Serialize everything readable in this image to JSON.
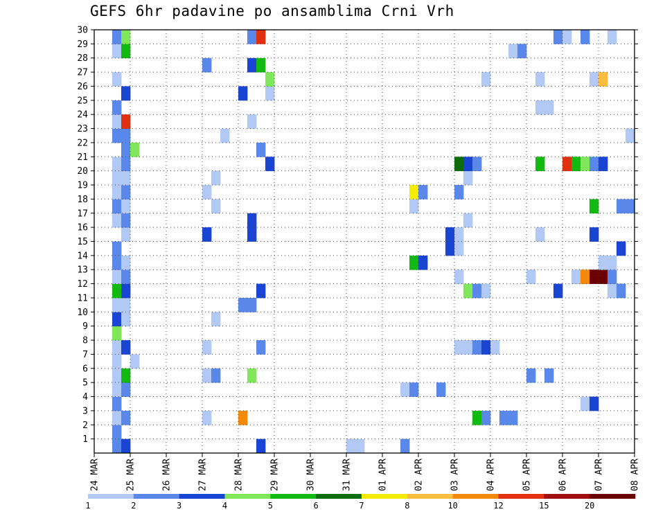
{
  "chart_data": {
    "type": "heatmap",
    "title": "GEFS 6hr padavine po ansamblima Crni Vrh",
    "xlabel": "",
    "ylabel": "",
    "x_tick_labels": [
      "24 MAR",
      "25 MAR",
      "26 MAR",
      "27 MAR",
      "28 MAR",
      "29 MAR",
      "30 MAR",
      "31 MAR",
      "01 APR",
      "02 APR",
      "03 APR",
      "04 APR",
      "05 APR",
      "06 APR",
      "07 APR",
      "08 APR"
    ],
    "y_tick_labels": [
      "1",
      "2",
      "3",
      "4",
      "5",
      "6",
      "7",
      "8",
      "9",
      "10",
      "11",
      "12",
      "13",
      "14",
      "15",
      "16",
      "17",
      "18",
      "19",
      "20",
      "21",
      "22",
      "23",
      "24",
      "25",
      "26",
      "27",
      "28",
      "29",
      "30"
    ],
    "ylim": [
      0,
      30
    ],
    "x_steps_per_day": 4,
    "x_steps_total": 60,
    "grid": true,
    "legend_position": "bottom",
    "legend_levels": [
      "1",
      "2",
      "3",
      "4",
      "5",
      "6",
      "7",
      "8",
      "10",
      "12",
      "15",
      "20"
    ],
    "legend_colors": [
      "#b3c9f5",
      "#5a88ea",
      "#1a45d2",
      "#80e65a",
      "#11b911",
      "#0b6d0b",
      "#f5ed00",
      "#fdbe40",
      "#f58a0a",
      "#e03010",
      "#a01010",
      "#6a0000"
    ],
    "cells": [
      [
        2,
        0,
        2
      ],
      [
        3,
        0,
        3
      ],
      [
        18,
        0,
        3
      ],
      [
        28,
        0,
        1
      ],
      [
        29,
        0,
        1
      ],
      [
        34,
        0,
        2
      ],
      [
        2,
        1,
        2
      ],
      [
        2,
        2,
        1
      ],
      [
        3,
        2,
        2
      ],
      [
        12,
        2,
        1
      ],
      [
        16,
        2,
        9
      ],
      [
        42,
        2,
        5
      ],
      [
        43,
        2,
        2
      ],
      [
        45,
        2,
        2
      ],
      [
        46,
        2,
        2
      ],
      [
        2,
        3,
        2
      ],
      [
        54,
        3,
        1
      ],
      [
        55,
        3,
        3
      ],
      [
        2,
        4,
        1
      ],
      [
        3,
        4,
        2
      ],
      [
        34,
        4,
        1
      ],
      [
        35,
        4,
        2
      ],
      [
        38,
        4,
        2
      ],
      [
        2,
        5,
        1
      ],
      [
        3,
        5,
        5
      ],
      [
        12,
        5,
        1
      ],
      [
        13,
        5,
        2
      ],
      [
        17,
        5,
        4
      ],
      [
        48,
        5,
        2
      ],
      [
        50,
        5,
        2
      ],
      [
        2,
        6,
        1
      ],
      [
        4,
        6,
        1
      ],
      [
        2,
        7,
        1
      ],
      [
        3,
        7,
        3
      ],
      [
        12,
        7,
        1
      ],
      [
        18,
        7,
        2
      ],
      [
        40,
        7,
        1
      ],
      [
        41,
        7,
        1
      ],
      [
        42,
        7,
        2
      ],
      [
        43,
        7,
        3
      ],
      [
        44,
        7,
        1
      ],
      [
        2,
        8,
        4
      ],
      [
        2,
        9,
        3
      ],
      [
        3,
        9,
        1
      ],
      [
        13,
        9,
        1
      ],
      [
        2,
        10,
        1
      ],
      [
        3,
        10,
        1
      ],
      [
        16,
        10,
        2
      ],
      [
        17,
        10,
        2
      ],
      [
        2,
        11,
        5
      ],
      [
        3,
        11,
        3
      ],
      [
        18,
        11,
        3
      ],
      [
        41,
        11,
        4
      ],
      [
        42,
        11,
        2
      ],
      [
        43,
        11,
        1
      ],
      [
        51,
        11,
        3
      ],
      [
        57,
        11,
        1
      ],
      [
        58,
        11,
        2
      ],
      [
        2,
        12,
        1
      ],
      [
        3,
        12,
        2
      ],
      [
        40,
        12,
        1
      ],
      [
        48,
        12,
        1
      ],
      [
        53,
        12,
        1
      ],
      [
        54,
        12,
        9
      ],
      [
        55,
        12,
        12
      ],
      [
        56,
        12,
        12
      ],
      [
        57,
        12,
        2
      ],
      [
        2,
        13,
        2
      ],
      [
        3,
        13,
        1
      ],
      [
        35,
        13,
        5
      ],
      [
        36,
        13,
        3
      ],
      [
        56,
        13,
        1
      ],
      [
        57,
        13,
        1
      ],
      [
        2,
        14,
        2
      ],
      [
        39,
        14,
        3
      ],
      [
        40,
        14,
        1
      ],
      [
        58,
        14,
        3
      ],
      [
        3,
        15,
        1
      ],
      [
        12,
        15,
        3
      ],
      [
        17,
        15,
        3
      ],
      [
        39,
        15,
        3
      ],
      [
        40,
        15,
        1
      ],
      [
        49,
        15,
        1
      ],
      [
        55,
        15,
        3
      ],
      [
        2,
        16,
        1
      ],
      [
        3,
        16,
        2
      ],
      [
        17,
        16,
        3
      ],
      [
        41,
        16,
        1
      ],
      [
        2,
        17,
        2
      ],
      [
        3,
        17,
        1
      ],
      [
        13,
        17,
        1
      ],
      [
        35,
        17,
        1
      ],
      [
        55,
        17,
        5
      ],
      [
        58,
        17,
        2
      ],
      [
        59,
        17,
        2
      ],
      [
        2,
        18,
        1
      ],
      [
        3,
        18,
        2
      ],
      [
        12,
        18,
        1
      ],
      [
        35,
        18,
        7
      ],
      [
        36,
        18,
        2
      ],
      [
        40,
        18,
        2
      ],
      [
        2,
        19,
        1
      ],
      [
        3,
        19,
        1
      ],
      [
        13,
        19,
        1
      ],
      [
        41,
        19,
        1
      ],
      [
        2,
        20,
        1
      ],
      [
        3,
        20,
        2
      ],
      [
        19,
        20,
        3
      ],
      [
        40,
        20,
        6
      ],
      [
        41,
        20,
        3
      ],
      [
        42,
        20,
        2
      ],
      [
        49,
        20,
        5
      ],
      [
        52,
        20,
        10
      ],
      [
        53,
        20,
        5
      ],
      [
        54,
        20,
        4
      ],
      [
        55,
        20,
        2
      ],
      [
        56,
        20,
        3
      ],
      [
        3,
        21,
        2
      ],
      [
        4,
        21,
        4
      ],
      [
        18,
        21,
        2
      ],
      [
        2,
        22,
        2
      ],
      [
        3,
        22,
        2
      ],
      [
        14,
        22,
        1
      ],
      [
        59,
        22,
        1
      ],
      [
        2,
        23,
        1
      ],
      [
        3,
        23,
        10
      ],
      [
        17,
        23,
        1
      ],
      [
        2,
        24,
        2
      ],
      [
        49,
        24,
        1
      ],
      [
        50,
        24,
        1
      ],
      [
        3,
        25,
        3
      ],
      [
        16,
        25,
        3
      ],
      [
        19,
        25,
        1
      ],
      [
        2,
        26,
        1
      ],
      [
        19,
        26,
        4
      ],
      [
        43,
        26,
        1
      ],
      [
        49,
        26,
        1
      ],
      [
        55,
        26,
        1
      ],
      [
        56,
        26,
        8
      ],
      [
        12,
        27,
        2
      ],
      [
        17,
        27,
        3
      ],
      [
        18,
        27,
        5
      ],
      [
        2,
        28,
        1
      ],
      [
        3,
        28,
        5
      ],
      [
        46,
        28,
        1
      ],
      [
        47,
        28,
        2
      ],
      [
        2,
        29,
        2
      ],
      [
        3,
        29,
        4
      ],
      [
        17,
        29,
        2
      ],
      [
        18,
        29,
        10
      ],
      [
        51,
        29,
        2
      ],
      [
        52,
        29,
        1
      ],
      [
        54,
        29,
        2
      ],
      [
        57,
        29,
        1
      ]
    ]
  }
}
